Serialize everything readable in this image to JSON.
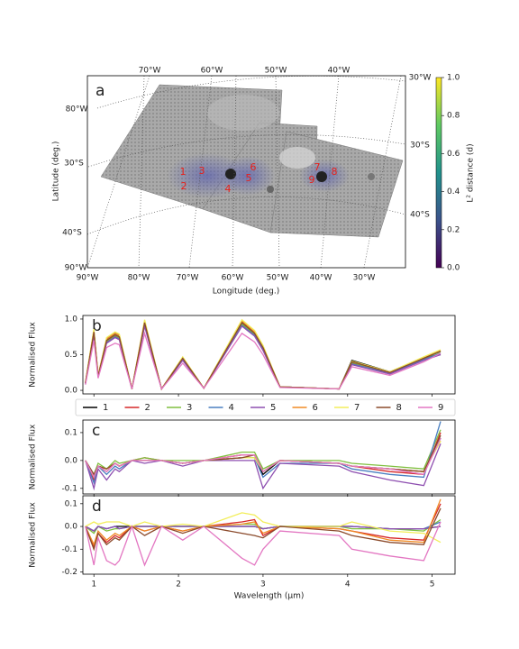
{
  "chart_data": [
    {
      "type": "map",
      "panel_label": "a",
      "xlabel": "Longitude (deg.)",
      "ylabel": "Latitude (deg.)",
      "top_labels": [
        "70°W",
        "60°W",
        "50°W",
        "40°W"
      ],
      "left_labels": [
        "80°W",
        "30°S",
        "40°S",
        "90°W"
      ],
      "right_labels": [
        "30°W",
        "30°S",
        "40°S"
      ],
      "bottom_labels": [
        "90°W",
        "80°W",
        "70°W",
        "60°W",
        "50°W",
        "40°W",
        "30°W"
      ],
      "points": [
        "1",
        "2",
        "3",
        "4",
        "5",
        "6",
        "7",
        "8",
        "9"
      ],
      "point_color": "#e8201a",
      "colorbar": {
        "label": "L² distance (d)",
        "lim": [
          0,
          1
        ],
        "ticks": [
          {
            "value": 0,
            "label": "0.0"
          },
          {
            "value": 0.2,
            "label": "0.2"
          },
          {
            "value": 0.4,
            "label": "0.4"
          },
          {
            "value": 0.6,
            "label": "0.6"
          },
          {
            "value": 0.8,
            "label": "0.8"
          },
          {
            "value": 1,
            "label": "1.0"
          }
        ]
      }
    },
    {
      "type": "line",
      "panel_label": "b",
      "ylabel": "Normalised Flux",
      "x": [
        0.9,
        1.0,
        1.05,
        1.15,
        1.25,
        1.3,
        1.45,
        1.6,
        1.8,
        2.05,
        2.3,
        2.75,
        2.9,
        3.0,
        3.2,
        3.9,
        4.05,
        4.5,
        4.9,
        5.1
      ],
      "xlim": [
        0.87,
        5.27
      ],
      "xticks": [
        1,
        2,
        3,
        4,
        5
      ],
      "ylim": [
        -0.05,
        1.05
      ],
      "yticks": [
        {
          "value": 0,
          "label": "0.0"
        },
        {
          "value": 0.5,
          "label": "0.5"
        },
        {
          "value": 1,
          "label": "1.0"
        }
      ],
      "series": [
        {
          "name": "1",
          "color": "#000000",
          "values": [
            0.1,
            0.84,
            0.2,
            0.72,
            0.8,
            0.77,
            0.02,
            0.96,
            0.02,
            0.46,
            0.03,
            0.95,
            0.8,
            0.6,
            0.05,
            0.02,
            0.42,
            0.26,
            0.46,
            0.5
          ]
        },
        {
          "name": "2",
          "color": "#d62728",
          "values": [
            0.1,
            0.8,
            0.2,
            0.68,
            0.76,
            0.73,
            0.02,
            0.92,
            0.02,
            0.44,
            0.03,
            0.92,
            0.78,
            0.58,
            0.05,
            0.02,
            0.38,
            0.24,
            0.44,
            0.55
          ]
        },
        {
          "name": "3",
          "color": "#7fbf3f",
          "values": [
            0.1,
            0.81,
            0.2,
            0.69,
            0.77,
            0.74,
            0.02,
            0.93,
            0.02,
            0.44,
            0.03,
            0.93,
            0.79,
            0.59,
            0.05,
            0.02,
            0.39,
            0.25,
            0.45,
            0.54
          ]
        },
        {
          "name": "4",
          "color": "#4a7fc1",
          "values": [
            0.1,
            0.79,
            0.19,
            0.67,
            0.75,
            0.72,
            0.02,
            0.91,
            0.02,
            0.43,
            0.03,
            0.91,
            0.77,
            0.57,
            0.05,
            0.02,
            0.37,
            0.24,
            0.43,
            0.52
          ]
        },
        {
          "name": "5",
          "color": "#8e4fb0",
          "values": [
            0.09,
            0.78,
            0.19,
            0.66,
            0.74,
            0.71,
            0.02,
            0.9,
            0.02,
            0.42,
            0.03,
            0.9,
            0.76,
            0.56,
            0.05,
            0.02,
            0.36,
            0.23,
            0.42,
            0.5
          ]
        },
        {
          "name": "6",
          "color": "#f08a24",
          "values": [
            0.11,
            0.84,
            0.21,
            0.72,
            0.8,
            0.77,
            0.02,
            0.97,
            0.02,
            0.46,
            0.03,
            0.97,
            0.82,
            0.61,
            0.05,
            0.02,
            0.4,
            0.25,
            0.46,
            0.56
          ]
        },
        {
          "name": "7",
          "color": "#f2ee5a",
          "values": [
            0.11,
            0.86,
            0.21,
            0.74,
            0.82,
            0.79,
            0.02,
            0.99,
            0.02,
            0.47,
            0.03,
            0.99,
            0.84,
            0.63,
            0.05,
            0.02,
            0.41,
            0.26,
            0.47,
            0.57
          ]
        },
        {
          "name": "8",
          "color": "#8b4a2b",
          "values": [
            0.1,
            0.82,
            0.2,
            0.7,
            0.78,
            0.75,
            0.02,
            0.95,
            0.02,
            0.45,
            0.03,
            0.95,
            0.8,
            0.6,
            0.05,
            0.02,
            0.4,
            0.25,
            0.45,
            0.55
          ]
        },
        {
          "name": "9",
          "color": "#e377c2",
          "values": [
            0.08,
            0.7,
            0.17,
            0.6,
            0.66,
            0.64,
            0.02,
            0.8,
            0.02,
            0.38,
            0.03,
            0.8,
            0.68,
            0.5,
            0.04,
            0.02,
            0.33,
            0.21,
            0.4,
            0.52
          ]
        }
      ]
    },
    {
      "type": "line",
      "panel_label": "c",
      "ylabel": "Normalised Flux",
      "x": [
        0.9,
        1.0,
        1.05,
        1.15,
        1.25,
        1.3,
        1.45,
        1.6,
        1.8,
        2.05,
        2.3,
        2.75,
        2.9,
        3.0,
        3.2,
        3.9,
        4.05,
        4.5,
        4.9,
        5.1
      ],
      "xlim": [
        0.87,
        5.27
      ],
      "xticks": [
        1,
        2,
        3,
        4,
        5
      ],
      "ylim": [
        -0.12,
        0.145
      ],
      "yticks": [
        {
          "value": -0.1,
          "label": "-0.1"
        },
        {
          "value": 0,
          "label": "0.0"
        },
        {
          "value": 0.1,
          "label": "0.1"
        }
      ],
      "series": [
        {
          "color": "#000000",
          "values": [
            0,
            -0.06,
            -0.02,
            -0.03,
            -0.01,
            -0.02,
            0,
            0,
            0,
            -0.01,
            0,
            0.01,
            0.01,
            -0.05,
            0,
            -0.01,
            -0.02,
            -0.03,
            -0.04,
            0.08
          ]
        },
        {
          "color": "#d62728",
          "values": [
            0,
            -0.07,
            -0.02,
            -0.04,
            -0.01,
            -0.02,
            0,
            0.01,
            0,
            -0.01,
            0,
            0.02,
            0.02,
            -0.04,
            0,
            -0.01,
            -0.02,
            -0.04,
            -0.05,
            0.1
          ]
        },
        {
          "color": "#7fbf3f",
          "values": [
            0,
            -0.05,
            -0.01,
            -0.03,
            0,
            -0.01,
            0,
            0.01,
            0,
            0,
            0,
            0.03,
            0.03,
            -0.03,
            0,
            0,
            -0.01,
            -0.02,
            -0.03,
            0.11
          ]
        },
        {
          "color": "#4a7fc1",
          "values": [
            0,
            -0.08,
            -0.02,
            -0.05,
            -0.02,
            -0.03,
            0,
            0,
            0,
            -0.01,
            0,
            0.01,
            0.01,
            -0.06,
            -0.01,
            -0.01,
            -0.03,
            -0.05,
            -0.06,
            0.14
          ]
        },
        {
          "color": "#8e4fb0",
          "values": [
            0,
            -0.1,
            -0.03,
            -0.07,
            -0.03,
            -0.04,
            0,
            -0.01,
            0,
            -0.02,
            0,
            0,
            0,
            -0.1,
            -0.01,
            -0.02,
            -0.04,
            -0.07,
            -0.09,
            0.06
          ]
        },
        {
          "color": "#f08a24",
          "values": [
            0,
            -0.06,
            -0.02,
            -0.03,
            -0.01,
            -0.02,
            0,
            0,
            0,
            -0.01,
            0,
            0.02,
            0.02,
            -0.04,
            0,
            -0.01,
            -0.02,
            -0.03,
            -0.04,
            0.07
          ]
        },
        {
          "color": "#f2ee5a",
          "values": [
            0,
            -0.06,
            -0.02,
            -0.03,
            -0.01,
            -0.02,
            0,
            0,
            0,
            -0.01,
            0,
            0.01,
            0.01,
            -0.04,
            0,
            -0.01,
            -0.02,
            -0.03,
            -0.04,
            0.07
          ]
        },
        {
          "color": "#8b4a2b",
          "values": [
            0,
            -0.05,
            -0.02,
            -0.03,
            -0.01,
            -0.02,
            0,
            0,
            0,
            -0.01,
            0,
            0.01,
            0.02,
            -0.04,
            0,
            -0.01,
            -0.02,
            -0.03,
            -0.04,
            0.09
          ]
        },
        {
          "color": "#e377c2",
          "values": [
            0,
            -0.06,
            -0.02,
            -0.04,
            -0.01,
            -0.02,
            0,
            0,
            0,
            -0.01,
            0,
            0.02,
            0.02,
            -0.04,
            0,
            -0.01,
            -0.02,
            -0.03,
            -0.05,
            0.08
          ]
        }
      ]
    },
    {
      "type": "line",
      "panel_label": "d",
      "ylabel": "Normalised Flux",
      "xlabel": "Wavelength (μm)",
      "x": [
        0.9,
        1.0,
        1.05,
        1.15,
        1.25,
        1.3,
        1.45,
        1.6,
        1.8,
        2.05,
        2.3,
        2.75,
        2.9,
        3.0,
        3.2,
        3.9,
        4.05,
        4.5,
        4.9,
        5.1
      ],
      "xlim": [
        0.87,
        5.27
      ],
      "xticks": [
        1,
        2,
        3,
        4,
        5
      ],
      "ylim": [
        -0.21,
        0.135
      ],
      "yticks": [
        {
          "value": -0.2,
          "label": "-0.2"
        },
        {
          "value": -0.1,
          "label": "-0.1"
        },
        {
          "value": 0,
          "label": "0.0"
        },
        {
          "value": 0.1,
          "label": "0.1"
        }
      ],
      "series": [
        {
          "color": "#000000",
          "values": [
            0,
            -0.02,
            0,
            -0.01,
            0,
            0,
            0,
            0,
            0,
            0,
            0,
            0,
            0,
            -0.01,
            0,
            0,
            0,
            -0.01,
            -0.01,
            0
          ]
        },
        {
          "color": "#d62728",
          "values": [
            0,
            -0.09,
            -0.03,
            -0.07,
            -0.04,
            -0.05,
            0,
            -0.02,
            0,
            -0.02,
            0,
            0.02,
            0.03,
            -0.04,
            0,
            -0.01,
            -0.02,
            -0.05,
            -0.06,
            0.1
          ]
        },
        {
          "color": "#7fbf3f",
          "values": [
            0,
            -0.03,
            0,
            -0.02,
            -0.01,
            -0.01,
            0,
            0,
            0,
            0,
            0,
            0.01,
            0.01,
            -0.01,
            0,
            0,
            -0.01,
            -0.01,
            -0.02,
            0.03
          ]
        },
        {
          "color": "#4a7fc1",
          "values": [
            0,
            -0.02,
            0,
            -0.01,
            0,
            -0.01,
            0,
            0,
            0,
            0,
            0,
            0,
            0,
            -0.01,
            0,
            0,
            0,
            -0.01,
            -0.01,
            0.02
          ]
        },
        {
          "color": "#8e4fb0",
          "values": [
            0,
            -0.02,
            0,
            -0.01,
            0,
            -0.01,
            0,
            0,
            0,
            0,
            0,
            0,
            0,
            -0.01,
            0,
            0,
            0,
            -0.01,
            -0.01,
            0
          ]
        },
        {
          "color": "#f08a24",
          "values": [
            0,
            -0.08,
            -0.02,
            -0.06,
            -0.03,
            -0.04,
            0,
            -0.02,
            0,
            -0.02,
            0,
            0.01,
            0.02,
            -0.03,
            0,
            -0.01,
            -0.02,
            -0.06,
            -0.07,
            0.12
          ]
        },
        {
          "color": "#f2ee5a",
          "values": [
            0,
            0.02,
            0.01,
            0.02,
            0.02,
            0.02,
            0,
            0.02,
            0,
            0.01,
            0,
            0.06,
            0.05,
            0.02,
            0,
            0,
            0.02,
            -0.02,
            -0.03,
            -0.07
          ]
        },
        {
          "color": "#8b4a2b",
          "values": [
            0,
            -0.1,
            -0.03,
            -0.08,
            -0.05,
            -0.06,
            0,
            -0.04,
            0,
            -0.03,
            0,
            -0.03,
            -0.04,
            -0.05,
            0,
            -0.02,
            -0.04,
            -0.07,
            -0.08,
            0.08
          ]
        },
        {
          "color": "#e377c2",
          "values": [
            0,
            -0.17,
            -0.05,
            -0.15,
            -0.17,
            -0.15,
            0,
            -0.17,
            0,
            -0.06,
            0,
            -0.14,
            -0.17,
            -0.1,
            -0.02,
            -0.04,
            -0.1,
            -0.13,
            -0.15,
            0.02
          ]
        }
      ]
    }
  ]
}
